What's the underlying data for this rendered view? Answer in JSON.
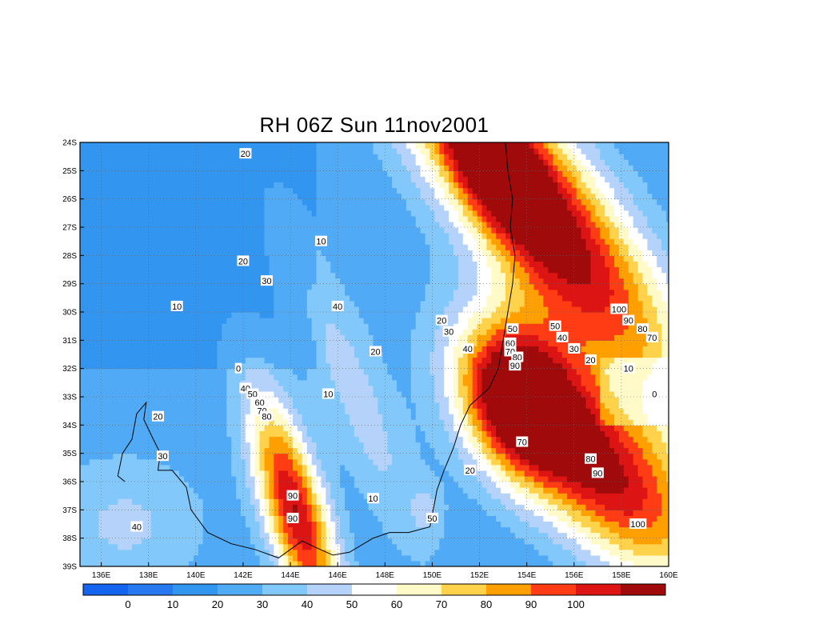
{
  "chart_data": {
    "type": "heatmap",
    "title": "RH 06Z Sun 11nov2001",
    "variable": "RH",
    "x_ticks": [
      "136E",
      "138E",
      "140E",
      "142E",
      "144E",
      "146E",
      "148E",
      "150E",
      "152E",
      "154E",
      "156E",
      "158E",
      "160E"
    ],
    "y_ticks": [
      "24S",
      "25S",
      "26S",
      "27S",
      "28S",
      "29S",
      "30S",
      "31S",
      "32S",
      "33S",
      "34S",
      "35S",
      "36S",
      "37S",
      "38S",
      "39S"
    ],
    "lon_range": [
      135.1,
      160.0
    ],
    "lat_range": [
      -39.0,
      -24.0
    ],
    "grid": "dotted",
    "colorbar": {
      "levels": [
        0,
        10,
        20,
        30,
        40,
        50,
        60,
        70,
        80,
        90,
        100
      ],
      "colors": [
        "#1464f0",
        "#2878f0",
        "#3296f0",
        "#50aaf5",
        "#82c8fa",
        "#b4d2fa",
        "#ffffff",
        "#fffac8",
        "#ffd24b",
        "#ffa000",
        "#ff3c14",
        "#dc1414",
        "#a00a0a"
      ]
    },
    "contour_labels": [
      {
        "text": "20",
        "lon": 142.1,
        "lat": -24.4
      },
      {
        "text": "10",
        "lon": 145.3,
        "lat": -27.5
      },
      {
        "text": "20",
        "lon": 142.0,
        "lat": -28.2
      },
      {
        "text": "30",
        "lon": 143.0,
        "lat": -28.9
      },
      {
        "text": "10",
        "lon": 139.2,
        "lat": -29.8
      },
      {
        "text": "40",
        "lon": 146.0,
        "lat": -29.8
      },
      {
        "text": "0",
        "lon": 141.8,
        "lat": -32.0
      },
      {
        "text": "20",
        "lon": 147.6,
        "lat": -31.4
      },
      {
        "text": "40",
        "lon": 142.1,
        "lat": -32.7
      },
      {
        "text": "50",
        "lon": 142.4,
        "lat": -32.9
      },
      {
        "text": "60",
        "lon": 142.7,
        "lat": -33.2
      },
      {
        "text": "70",
        "lon": 142.8,
        "lat": -33.5
      },
      {
        "text": "80",
        "lon": 143.0,
        "lat": -33.7
      },
      {
        "text": "10",
        "lon": 145.6,
        "lat": -32.9
      },
      {
        "text": "20",
        "lon": 138.4,
        "lat": -33.7
      },
      {
        "text": "30",
        "lon": 138.6,
        "lat": -35.1
      },
      {
        "text": "40",
        "lon": 137.5,
        "lat": -37.6
      },
      {
        "text": "90",
        "lon": 144.1,
        "lat": -36.5
      },
      {
        "text": "90",
        "lon": 144.1,
        "lat": -37.3
      },
      {
        "text": "10",
        "lon": 147.5,
        "lat": -36.6
      },
      {
        "text": "50",
        "lon": 150.0,
        "lat": -37.3
      },
      {
        "text": "20",
        "lon": 151.6,
        "lat": -35.6
      },
      {
        "text": "70",
        "lon": 153.8,
        "lat": -34.6
      },
      {
        "text": "20",
        "lon": 150.4,
        "lat": -30.3
      },
      {
        "text": "30",
        "lon": 150.7,
        "lat": -30.7
      },
      {
        "text": "40",
        "lon": 151.5,
        "lat": -31.3
      },
      {
        "text": "50",
        "lon": 153.4,
        "lat": -30.6
      },
      {
        "text": "60",
        "lon": 153.3,
        "lat": -31.1
      },
      {
        "text": "70",
        "lon": 153.3,
        "lat": -31.4
      },
      {
        "text": "80",
        "lon": 153.6,
        "lat": -31.6
      },
      {
        "text": "90",
        "lon": 153.5,
        "lat": -31.9
      },
      {
        "text": "50",
        "lon": 155.2,
        "lat": -30.5
      },
      {
        "text": "40",
        "lon": 155.5,
        "lat": -30.9
      },
      {
        "text": "30",
        "lon": 156.0,
        "lat": -31.3
      },
      {
        "text": "20",
        "lon": 156.7,
        "lat": -31.7
      },
      {
        "text": "10",
        "lon": 158.3,
        "lat": -32.0
      },
      {
        "text": "0",
        "lon": 159.4,
        "lat": -32.9
      },
      {
        "text": "100",
        "lon": 157.9,
        "lat": -29.9
      },
      {
        "text": "90",
        "lon": 158.3,
        "lat": -30.3
      },
      {
        "text": "80",
        "lon": 158.9,
        "lat": -30.6
      },
      {
        "text": "70",
        "lon": 159.3,
        "lat": -30.9
      },
      {
        "text": "80",
        "lon": 156.7,
        "lat": -35.2
      },
      {
        "text": "90",
        "lon": 157.0,
        "lat": -35.7
      },
      {
        "text": "100",
        "lon": 158.7,
        "lat": -37.5
      }
    ]
  }
}
